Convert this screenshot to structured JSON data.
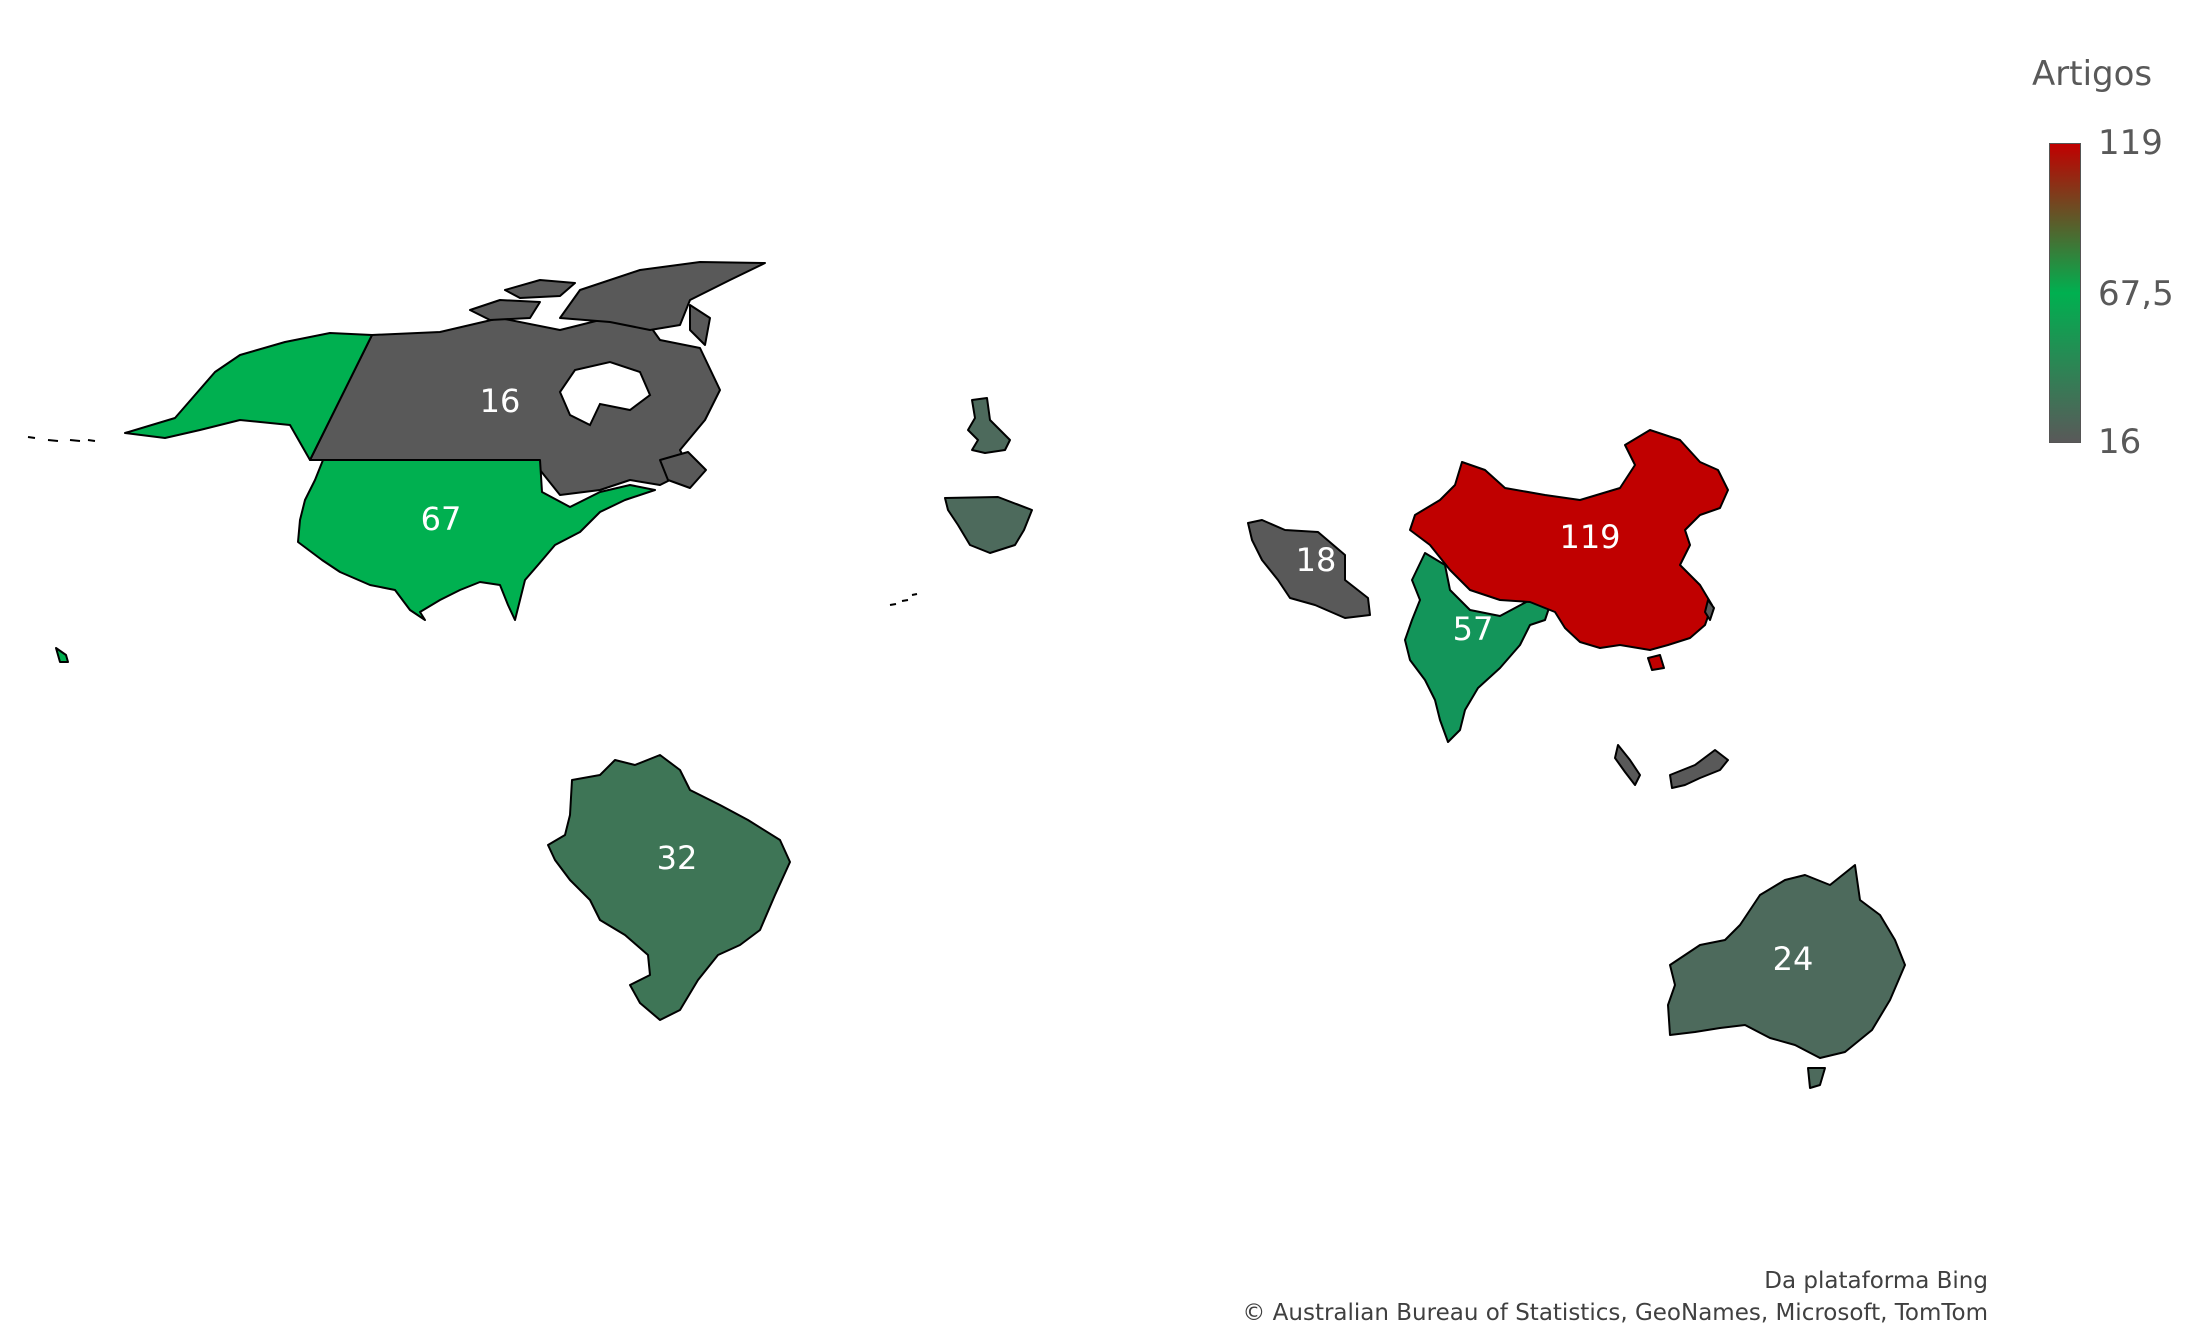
{
  "legend": {
    "title": "Artigos",
    "max_label": "119",
    "mid_label": "67,5",
    "min_label": "16",
    "gradient": {
      "low": "#595959",
      "mid": "#00b050",
      "high": "#c00000"
    }
  },
  "regions": {
    "canada": {
      "value": "16",
      "color": "#595959"
    },
    "usa": {
      "value": "67",
      "color": "#00b050"
    },
    "brazil": {
      "value": "32",
      "color": "#3e7556"
    },
    "uk": {
      "color": "#4d6a5c"
    },
    "spain": {
      "color": "#4d6a5c"
    },
    "iran": {
      "value": "18",
      "color": "#595959"
    },
    "india": {
      "value": "57",
      "color": "#13955a"
    },
    "china": {
      "value": "119",
      "color": "#c00000"
    },
    "australia": {
      "value": "24",
      "color": "#4d6a5c"
    },
    "malaysia": {
      "color": "#595959"
    }
  },
  "credits": {
    "line1": "Da plataforma Bing",
    "line2": "© Australian Bureau of Statistics, GeoNames, Microsoft, TomTom"
  }
}
